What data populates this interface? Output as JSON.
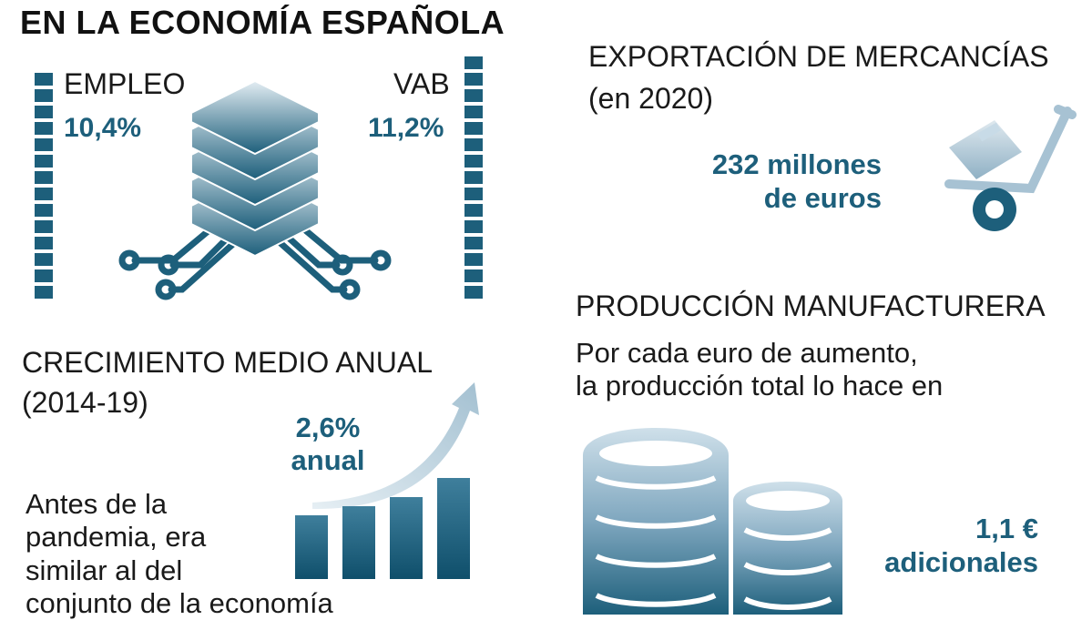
{
  "title": "EN LA ECONOMÍA ESPAÑOLA",
  "empleo": {
    "label": "EMPLEO",
    "value": "10,4%"
  },
  "vab": {
    "label": "VAB",
    "value": "11,2%"
  },
  "export": {
    "heading": "EXPORTACIÓN DE MERCANCÍAS",
    "period": "(en 2020)",
    "amount_line1": "232 millones",
    "amount_line2": "de euros"
  },
  "growth": {
    "heading": "CRECIMIENTO MEDIO ANUAL",
    "period": "(2014-19)",
    "value_line1": "2,6%",
    "value_line2": "anual",
    "note_lines": [
      "Antes de la",
      "pandemia, era",
      "similar al del",
      "conjunto de la economía"
    ]
  },
  "manufacturing": {
    "heading": "PRODUCCIÓN MANUFACTURERA",
    "desc_line1": "Por cada euro de aumento,",
    "desc_line2": "la producción total lo hace en",
    "value_line1": "1,1 €",
    "value_line2": "adicionales"
  },
  "colors": {
    "accent": "#1d5f7b",
    "light": "#c8dbe7",
    "text": "#1a1a1a"
  },
  "icons": [
    "server-chip-icon",
    "hand-truck-icon",
    "growth-bars-icon",
    "coins-stack-icon"
  ]
}
